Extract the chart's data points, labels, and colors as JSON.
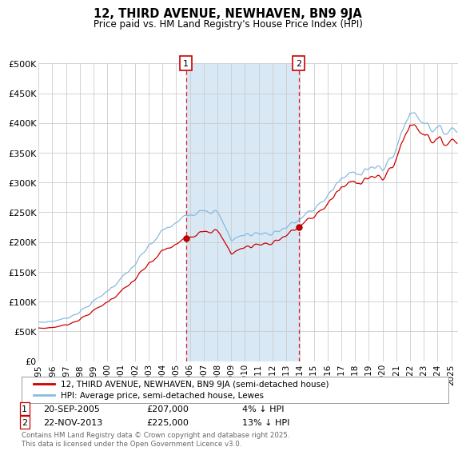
{
  "title": "12, THIRD AVENUE, NEWHAVEN, BN9 9JA",
  "subtitle": "Price paid vs. HM Land Registry's House Price Index (HPI)",
  "ylim": [
    0,
    500000
  ],
  "yticks": [
    0,
    50000,
    100000,
    150000,
    200000,
    250000,
    300000,
    350000,
    400000,
    450000,
    500000
  ],
  "ytick_labels": [
    "£0",
    "£50K",
    "£100K",
    "£150K",
    "£200K",
    "£250K",
    "£300K",
    "£350K",
    "£400K",
    "£450K",
    "£500K"
  ],
  "xlim_start": 1995.0,
  "xlim_end": 2025.5,
  "bg_color": "#ffffff",
  "plot_bg_color": "#ffffff",
  "grid_color": "#cccccc",
  "line1_color": "#cc0000",
  "line2_color": "#88bbdd",
  "vline_color": "#dd2222",
  "vline1_x": 2005.72,
  "vline2_x": 2013.9,
  "legend_label1": "12, THIRD AVENUE, NEWHAVEN, BN9 9JA (semi-detached house)",
  "legend_label2": "HPI: Average price, semi-detached house, Lewes",
  "copyright": "Contains HM Land Registry data © Crown copyright and database right 2025.\nThis data is licensed under the Open Government Licence v3.0.",
  "xtick_years": [
    1995,
    1996,
    1997,
    1998,
    1999,
    2000,
    2001,
    2002,
    2003,
    2004,
    2005,
    2006,
    2007,
    2008,
    2009,
    2010,
    2011,
    2012,
    2013,
    2014,
    2015,
    2016,
    2017,
    2018,
    2019,
    2020,
    2021,
    2022,
    2023,
    2024,
    2025
  ],
  "price_paid_years": [
    2005.72,
    2013.9
  ],
  "price_paid_values": [
    207000,
    225000
  ]
}
